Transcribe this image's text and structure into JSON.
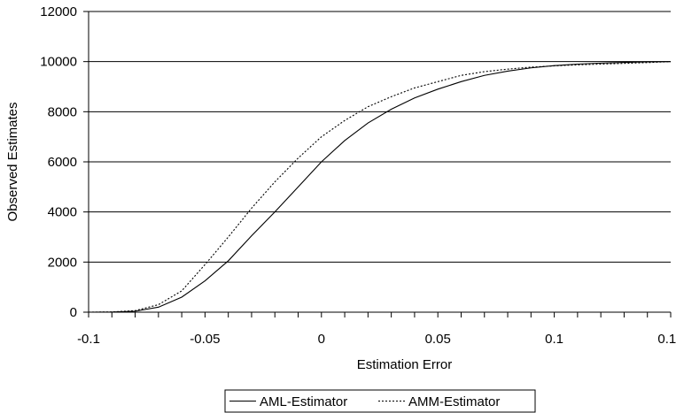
{
  "chart_data": {
    "type": "line",
    "title": "",
    "xlabel": "Estimation Error",
    "ylabel": "Observed Estimates",
    "xlim": [
      -0.1,
      0.15
    ],
    "ylim": [
      0,
      12000
    ],
    "x_ticks": [
      -0.1,
      -0.05,
      0,
      0.05,
      0.1,
      0.15
    ],
    "x_tick_labels": [
      "-0.1",
      "-0.05",
      "0",
      "0.05",
      "0.1",
      "0.15"
    ],
    "y_ticks": [
      0,
      2000,
      4000,
      6000,
      8000,
      10000,
      12000
    ],
    "y_tick_labels": [
      "0",
      "2000",
      "4000",
      "6000",
      "8000",
      "10000",
      "12000"
    ],
    "x_minor_step": 0.01,
    "grid": "horizontal",
    "legend_position": "bottom",
    "series": [
      {
        "name": "AML-Estimator",
        "style": "solid",
        "color": "#000000",
        "points": [
          [
            -0.1,
            0
          ],
          [
            -0.09,
            5
          ],
          [
            -0.08,
            40
          ],
          [
            -0.07,
            200
          ],
          [
            -0.06,
            600
          ],
          [
            -0.05,
            1250
          ],
          [
            -0.04,
            2050
          ],
          [
            -0.03,
            3050
          ],
          [
            -0.02,
            4000
          ],
          [
            -0.01,
            5000
          ],
          [
            0,
            6000
          ],
          [
            0.01,
            6850
          ],
          [
            0.02,
            7550
          ],
          [
            0.03,
            8100
          ],
          [
            0.04,
            8550
          ],
          [
            0.05,
            8900
          ],
          [
            0.06,
            9200
          ],
          [
            0.07,
            9450
          ],
          [
            0.08,
            9620
          ],
          [
            0.09,
            9750
          ],
          [
            0.1,
            9840
          ],
          [
            0.11,
            9900
          ],
          [
            0.12,
            9940
          ],
          [
            0.13,
            9970
          ],
          [
            0.14,
            9990
          ],
          [
            0.15,
            10000
          ]
        ]
      },
      {
        "name": "AMM-Estimator",
        "style": "dotted",
        "color": "#000000",
        "points": [
          [
            -0.1,
            0
          ],
          [
            -0.09,
            10
          ],
          [
            -0.08,
            60
          ],
          [
            -0.07,
            300
          ],
          [
            -0.06,
            850
          ],
          [
            -0.05,
            1900
          ],
          [
            -0.04,
            3000
          ],
          [
            -0.03,
            4150
          ],
          [
            -0.02,
            5200
          ],
          [
            -0.01,
            6150
          ],
          [
            0,
            7000
          ],
          [
            0.01,
            7650
          ],
          [
            0.02,
            8200
          ],
          [
            0.03,
            8600
          ],
          [
            0.04,
            8950
          ],
          [
            0.05,
            9200
          ],
          [
            0.06,
            9450
          ],
          [
            0.07,
            9600
          ],
          [
            0.08,
            9700
          ],
          [
            0.09,
            9780
          ],
          [
            0.1,
            9830
          ],
          [
            0.11,
            9870
          ],
          [
            0.12,
            9900
          ],
          [
            0.13,
            9930
          ],
          [
            0.14,
            9960
          ],
          [
            0.15,
            10000
          ]
        ]
      }
    ]
  }
}
